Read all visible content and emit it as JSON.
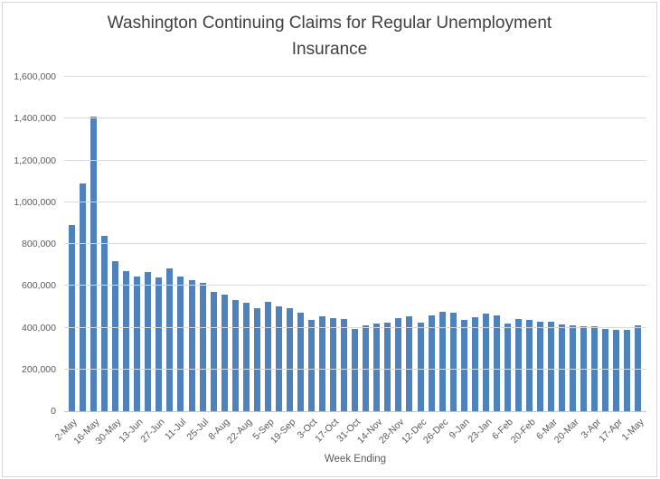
{
  "chart_data": {
    "type": "bar",
    "title": "Washington Continuing Claims for Regular Unemployment Insurance",
    "xlabel": "Week Ending",
    "ylabel": "",
    "ylim": [
      0,
      1600000
    ],
    "grid": true,
    "legend": "none",
    "bar_color": "#4F81BD",
    "gridline_color": "#D9D9D9",
    "axis_text_color": "#595959",
    "title_color": "#404040",
    "y_ticks": [
      0,
      200000,
      400000,
      600000,
      800000,
      1000000,
      1200000,
      1400000,
      1600000
    ],
    "y_tick_labels": [
      "0",
      "200,000",
      "400,000",
      "600,000",
      "800,000",
      "1,000,000",
      "1,200,000",
      "1,400,000",
      "1,600,000"
    ],
    "x_tick_every": 2,
    "x_tick_labels": [
      "2-May",
      "16-May",
      "30-May",
      "13-Jun",
      "27-Jun",
      "11-Jul",
      "25-Jul",
      "8-Aug",
      "22-Aug",
      "5-Sep",
      "19-Sep",
      "3-Oct",
      "17-Oct",
      "31-Oct",
      "14-Nov",
      "28-Nov",
      "12-Dec",
      "26-Dec",
      "9-Jan",
      "23-Jan",
      "6-Feb",
      "20-Feb",
      "6-Mar",
      "20-Mar",
      "3-Apr",
      "17-Apr",
      "1-May"
    ],
    "categories": [
      "2-May",
      "9-May",
      "16-May",
      "23-May",
      "30-May",
      "6-Jun",
      "13-Jun",
      "20-Jun",
      "27-Jun",
      "4-Jul",
      "11-Jul",
      "18-Jul",
      "25-Jul",
      "1-Aug",
      "8-Aug",
      "15-Aug",
      "22-Aug",
      "29-Aug",
      "5-Sep",
      "12-Sep",
      "19-Sep",
      "26-Sep",
      "3-Oct",
      "10-Oct",
      "17-Oct",
      "24-Oct",
      "31-Oct",
      "7-Nov",
      "14-Nov",
      "21-Nov",
      "28-Nov",
      "5-Dec",
      "12-Dec",
      "19-Dec",
      "26-Dec",
      "2-Jan",
      "9-Jan",
      "16-Jan",
      "23-Jan",
      "30-Jan",
      "6-Feb",
      "13-Feb",
      "20-Feb",
      "27-Feb",
      "6-Mar",
      "13-Mar",
      "20-Mar",
      "27-Mar",
      "3-Apr",
      "10-Apr",
      "17-Apr",
      "24-Apr",
      "1-May"
    ],
    "values": [
      890000,
      1090000,
      1410000,
      840000,
      720000,
      670000,
      645000,
      665000,
      640000,
      685000,
      645000,
      625000,
      615000,
      570000,
      560000,
      530000,
      520000,
      495000,
      525000,
      500000,
      495000,
      470000,
      435000,
      455000,
      445000,
      440000,
      395000,
      410000,
      420000,
      425000,
      445000,
      455000,
      425000,
      460000,
      475000,
      470000,
      435000,
      450000,
      465000,
      460000,
      420000,
      440000,
      435000,
      430000,
      430000,
      415000,
      410000,
      405000,
      405000,
      395000,
      390000,
      390000,
      410000
    ]
  }
}
